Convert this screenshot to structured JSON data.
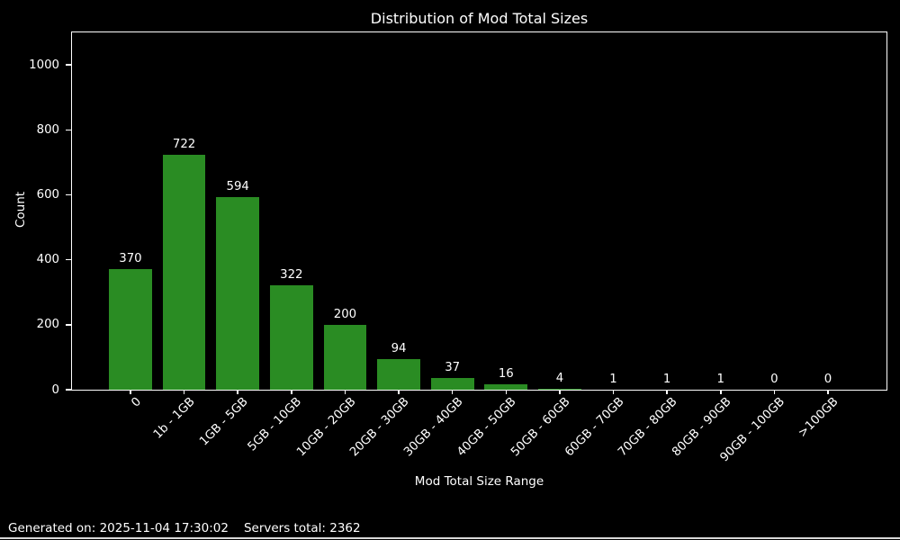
{
  "window": {
    "background_color": "#000000"
  },
  "chart_data": {
    "type": "bar",
    "title": "Distribution of Mod Total Sizes",
    "xlabel": "Mod Total Size Range",
    "ylabel": "Count",
    "categories": [
      "0",
      "1b - 1GB",
      "1GB - 5GB",
      "5GB - 10GB",
      "10GB - 20GB",
      "20GB - 30GB",
      "30GB - 40GB",
      "40GB - 50GB",
      "50GB - 60GB",
      "60GB - 70GB",
      "70GB - 80GB",
      "80GB - 90GB",
      "90GB - 100GB",
      ">100GB"
    ],
    "values": [
      370,
      722,
      594,
      322,
      200,
      94,
      37,
      16,
      4,
      1,
      1,
      1,
      0,
      0
    ],
    "bar_value_labels": [
      370,
      722,
      594,
      322,
      200,
      94,
      37,
      16,
      4,
      1,
      1,
      1,
      0,
      0
    ],
    "yticks": [
      0,
      200,
      400,
      600,
      800,
      1000
    ],
    "ylim": [
      0,
      1100
    ],
    "grid": false,
    "legend": null,
    "x_tick_rotation_deg": 45,
    "bar_color": "#2a8c23",
    "background_color": "#000000",
    "text_color": "#ffffff",
    "axis_color": "#ffffff"
  },
  "footer": {
    "generated_text": "Generated on: 2025-11-04 17:30:02",
    "servers_total_text": "Servers total: 2362"
  }
}
